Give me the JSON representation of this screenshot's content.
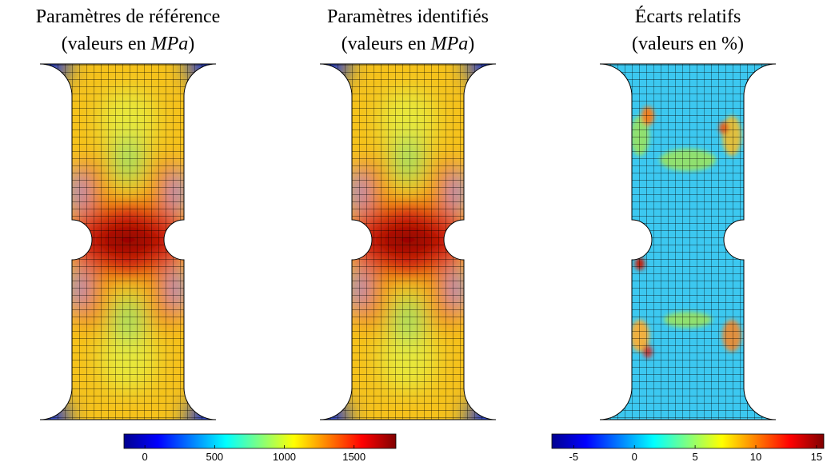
{
  "panels": [
    {
      "title": "Paramètres de référence",
      "subtitle": [
        "(valeurs en ",
        "MPa",
        ")"
      ]
    },
    {
      "title": "Paramètres identifiés",
      "subtitle": [
        "(valeurs en ",
        "MPa",
        ")"
      ]
    },
    {
      "title": "Écarts relatifs",
      "subtitle": [
        "(valeurs en ",
        "%",
        ")"
      ]
    }
  ],
  "colorbars": [
    {
      "lim": [
        -150,
        1800
      ],
      "ticks": [
        0,
        500,
        1000,
        1500
      ]
    },
    {
      "lim": [
        -6.8,
        15.6
      ],
      "ticks": [
        -5,
        0,
        5,
        10,
        15
      ]
    }
  ]
}
